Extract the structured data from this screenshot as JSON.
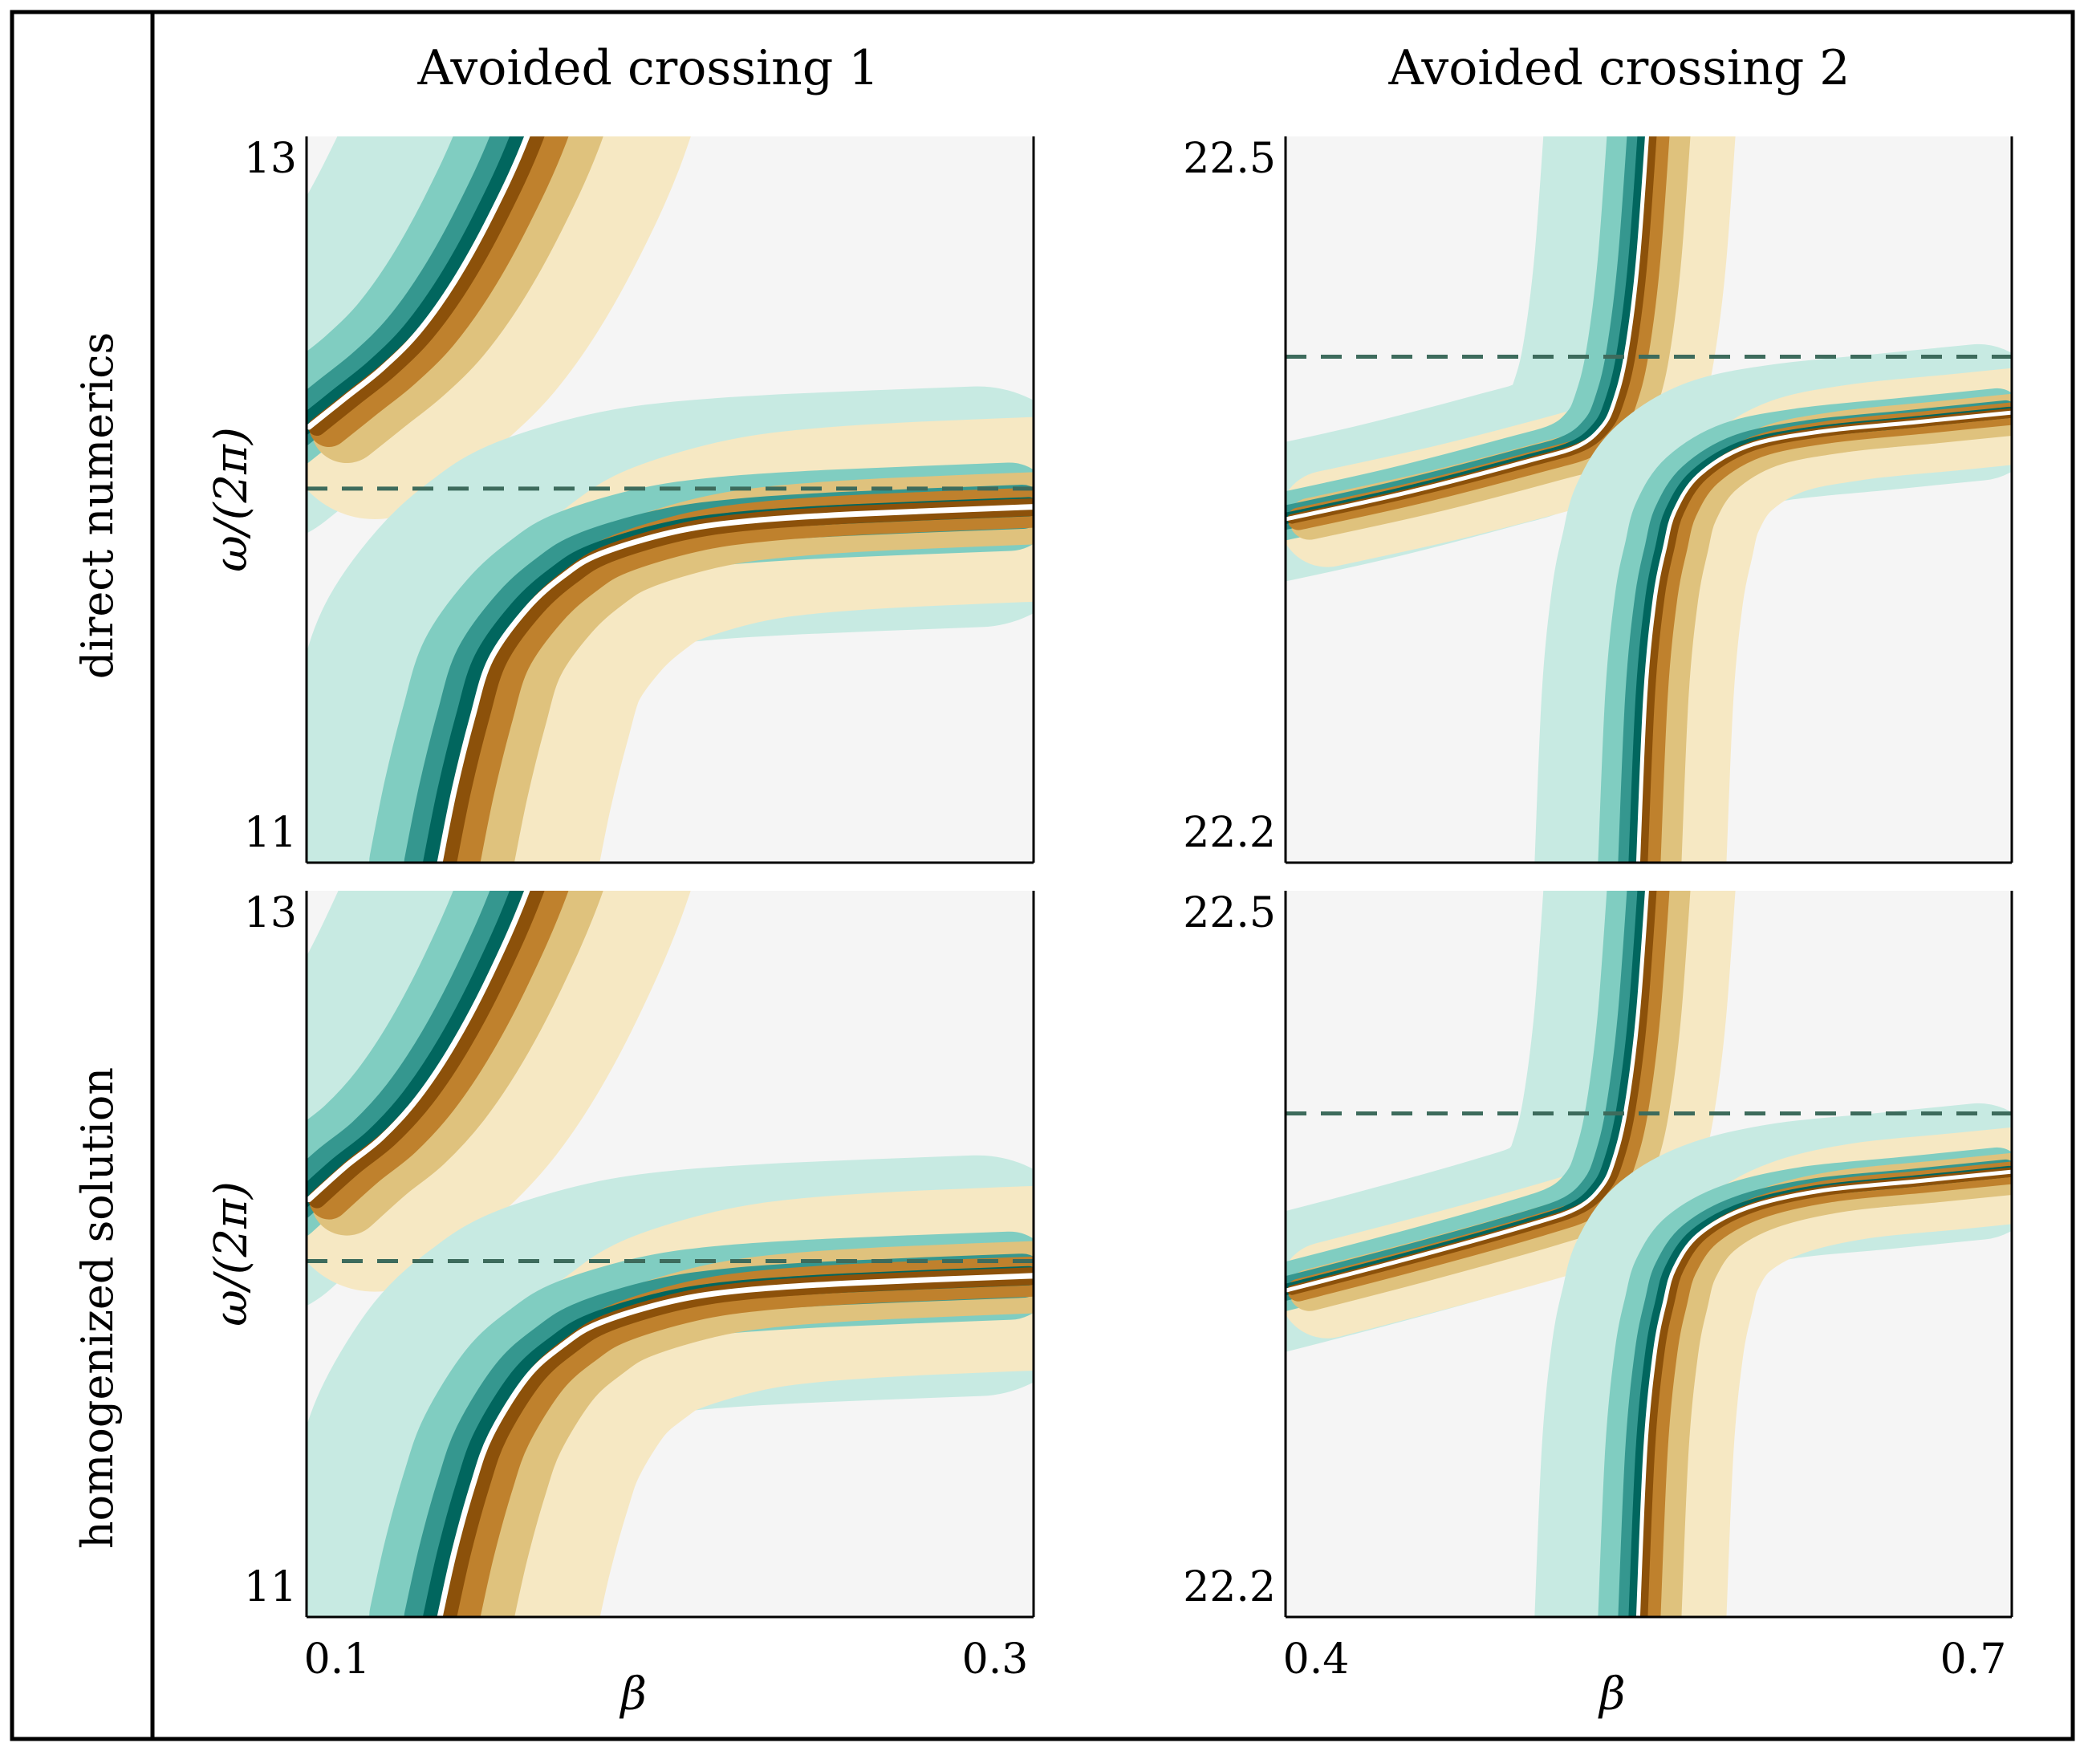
{
  "figure": {
    "row_labels": [
      "direct numerics",
      "homogenized solution"
    ],
    "column_titles": [
      "Avoided crossing 1",
      "Avoided crossing 2"
    ]
  },
  "colors": {
    "background": "#f5f5f5",
    "teal_light": "#c7eae2",
    "teal_mid": "#80cdc1",
    "teal": "#35978f",
    "teal_dark": "#01665e",
    "cream": "#f6e8c3",
    "tan": "#dfc27d",
    "brown": "#bf812d",
    "brown_dark": "#8c510a",
    "dashed_line": "#3d6b5c"
  },
  "chart_data": [
    {
      "type": "heatmap",
      "name": "",
      "row": "direct numerics",
      "column_title": "Avoided crossing 1",
      "xlabel": "",
      "ylabel": "ω/(2π)",
      "xlim": [
        0.1,
        0.3
      ],
      "ylim": [
        11,
        13
      ],
      "y_ticks": [
        "13",
        "11"
      ],
      "x_ticks": [],
      "dashed_line_y": 12.03,
      "upper_branch": {
        "beta": [
          0.1,
          0.11,
          0.12,
          0.13,
          0.14,
          0.15,
          0.16,
          0.17
        ],
        "omega": [
          12.2,
          12.28,
          12.36,
          12.46,
          12.6,
          12.78,
          13.0,
          13.3
        ]
      },
      "lower_branch": {
        "beta": [
          0.136,
          0.14,
          0.145,
          0.15,
          0.16,
          0.17,
          0.18,
          0.2,
          0.22,
          0.25,
          0.3
        ],
        "omega": [
          11.0,
          11.2,
          11.4,
          11.56,
          11.7,
          11.79,
          11.85,
          11.91,
          11.94,
          11.96,
          11.98
        ]
      }
    },
    {
      "type": "heatmap",
      "name": "",
      "row": "direct numerics",
      "column_title": "Avoided crossing 2",
      "xlabel": "",
      "ylabel": "",
      "xlim": [
        0.4,
        0.7
      ],
      "ylim": [
        22.2,
        22.5
      ],
      "y_ticks": [
        "22.5",
        "22.2"
      ],
      "x_ticks": [],
      "dashed_line_y": 22.409,
      "upper_branch": {
        "beta": [
          0.4,
          0.45,
          0.5,
          0.52,
          0.53,
          0.535,
          0.54,
          0.545,
          0.55
        ],
        "omega": [
          22.342,
          22.353,
          22.366,
          22.372,
          22.38,
          22.39,
          22.41,
          22.45,
          22.52
        ]
      },
      "lower_branch": {
        "beta": [
          0.545,
          0.548,
          0.552,
          0.556,
          0.56,
          0.57,
          0.59,
          0.62,
          0.66,
          0.7
        ],
        "omega": [
          22.2,
          22.27,
          22.31,
          22.33,
          22.345,
          22.36,
          22.372,
          22.378,
          22.382,
          22.386
        ]
      }
    },
    {
      "type": "heatmap",
      "name": "",
      "row": "homogenized solution",
      "column_title": "Avoided crossing 1",
      "xlabel": "β",
      "ylabel": "ω/(2π)",
      "xlim": [
        0.1,
        0.3
      ],
      "ylim": [
        11,
        13
      ],
      "x_ticks": [
        "0.1",
        "0.3"
      ],
      "y_ticks": [
        "13",
        "11"
      ],
      "dashed_line_y": 11.98,
      "upper_branch": {
        "beta": [
          0.1,
          0.11,
          0.12,
          0.13,
          0.14,
          0.15,
          0.16,
          0.17
        ],
        "omega": [
          12.15,
          12.24,
          12.32,
          12.43,
          12.58,
          12.77,
          13.0,
          13.3
        ]
      },
      "lower_branch": {
        "beta": [
          0.136,
          0.14,
          0.145,
          0.15,
          0.16,
          0.17,
          0.18,
          0.2,
          0.22,
          0.25,
          0.3
        ],
        "omega": [
          11.0,
          11.18,
          11.36,
          11.5,
          11.66,
          11.75,
          11.81,
          11.87,
          11.9,
          11.92,
          11.94
        ]
      }
    },
    {
      "type": "heatmap",
      "name": "",
      "row": "homogenized solution",
      "column_title": "Avoided crossing 2",
      "xlabel": "β",
      "ylabel": "",
      "xlim": [
        0.4,
        0.7
      ],
      "ylim": [
        22.2,
        22.5
      ],
      "x_ticks": [
        "0.4",
        "0.7"
      ],
      "y_ticks": [
        "22.5",
        "22.2"
      ],
      "dashed_line_y": 22.408,
      "upper_branch": {
        "beta": [
          0.4,
          0.45,
          0.5,
          0.52,
          0.53,
          0.535,
          0.54,
          0.545,
          0.55
        ],
        "omega": [
          22.335,
          22.348,
          22.362,
          22.369,
          22.378,
          22.389,
          22.41,
          22.45,
          22.52
        ]
      },
      "lower_branch": {
        "beta": [
          0.545,
          0.548,
          0.552,
          0.556,
          0.56,
          0.57,
          0.59,
          0.62,
          0.66,
          0.7
        ],
        "omega": [
          22.2,
          22.27,
          22.31,
          22.33,
          22.344,
          22.358,
          22.369,
          22.376,
          22.38,
          22.384
        ]
      }
    }
  ]
}
